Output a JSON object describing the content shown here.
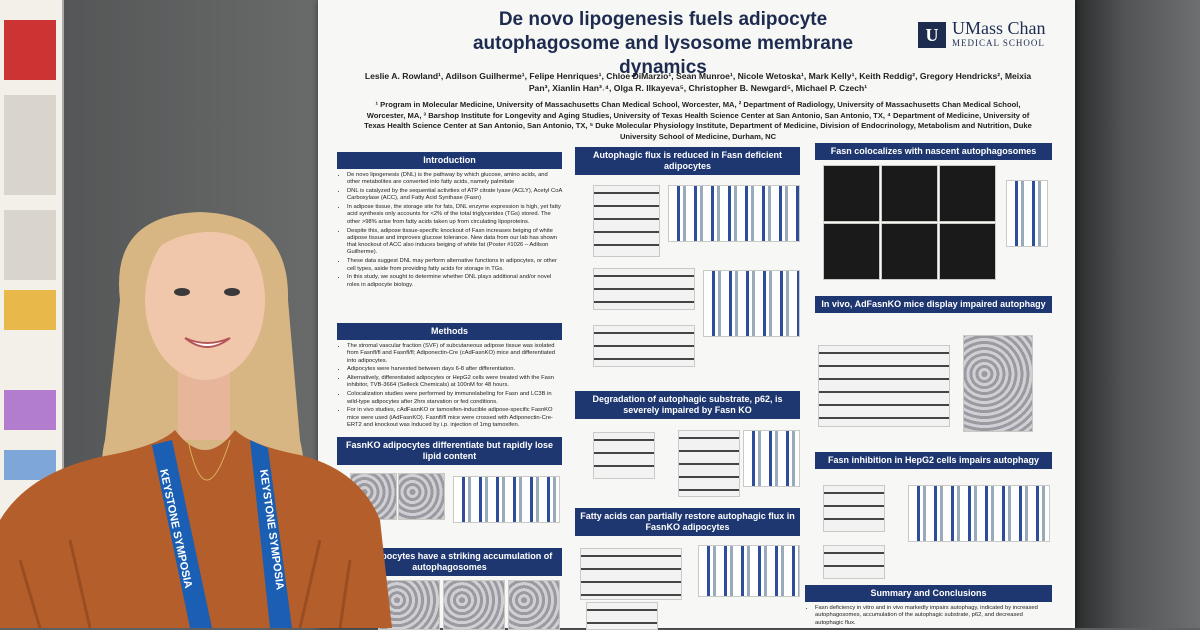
{
  "poster": {
    "title": "De novo lipogenesis fuels adipocyte autophagosome and lysosome membrane dynamics",
    "logo": {
      "mark": "U",
      "name": "UMass Chan",
      "subtitle": "MEDICAL SCHOOL"
    },
    "authors": "Leslie A. Rowland¹, Adilson Guilherme¹, Felipe Henriques¹, Chloe DiMarzio¹, Sean Munroe¹, Nicole Wetoska¹, Mark Kelly¹, Keith Reddig², Gregory Hendricks², Meixia Pan³, Xianlin Han³˒⁴, Olga R. Ilkayeva⁵, Christopher B. Newgard⁵, Michael P. Czech¹",
    "affiliations": "¹ Program in Molecular Medicine, University of Massachusetts Chan Medical School, Worcester, MA, ² Department of Radiology, University of Massachusetts Chan Medical School, Worcester, MA, ³ Barshop Institute for Longevity and Aging Studies, University of Texas Health Science Center at San Antonio, San Antonio, TX, ⁴ Department of Medicine, University of Texas Health Science Center at San Antonio, San Antonio, TX, ⁵ Duke Molecular Physiology Institute, Department of Medicine, Division of Endocrinology, Metabolism and Nutrition, Duke University School of Medicine, Durham, NC",
    "sections": [
      {
        "heading": "Introduction",
        "bullets": [
          "De novo lipogenesis (DNL) is the pathway by which glucose, amino acids, and other metabolites are converted into fatty acids, namely palmitate",
          "DNL is catalyzed by the sequential activities of ATP citrate lyase (ACLY), Acetyl CoA Carboxylase (ACC), and Fatty Acid Synthase (Fasn)",
          "In adipose tissue, the storage site for fats, DNL enzyme expression is high, yet fatty acid synthesis only accounts for <2% of the total triglycerides (TGs) stored. The other >98% arise from fatty acids taken up from circulating lipoproteins.",
          "Despite this, adipose tissue-specific knockout of Fasn increases beiging of white adipose tissue and improves glucose tolerance. New data from our lab has shown that knockout of ACC also induces beiging of white fat (Poster #1026 – Adilson Guilherme).",
          "These data suggest DNL may perform alternative functions in adipocytes, or other cell types, aside from providing fatty acids for storage in TGs.",
          "In this study, we sought to determine whether DNL plays additional and/or novel roles in adipocyte biology."
        ]
      },
      {
        "heading": "Methods",
        "bullets": [
          "The stromal vascular fraction (SVF) of subcutaneous adipose tissue was isolated from Fasnfl/fl and Fasnfl/fl; Adiponectin-Cre (cAdFasnKO) mice and differentiated into adipocytes.",
          "Adipocytes were harvested between days 6-8 after differentiation.",
          "Alternatively, differentiated adipocytes or HepG2 cells were treated with the Fasn inhibitor, TVB-3664 (Selleck Chemicals) at 100nM for 48 hours.",
          "Colocalization studies were performed by immunolabeling for Fasn and LC3B in wild-type adipocytes after 2hrs starvation or fed conditions.",
          "For in vivo studies, cAdFasnKO or tamoxifen-inducible adipose-specific FasnKO mice were used (iAdFasnKO). Fasnfl/fl mice were crossed with Adiponectin-Cre-ERT2 and knockout was induced by i.p. injection of 1mg tamoxifen."
        ]
      },
      {
        "heading": "FasnKO adipocytes differentiate but rapidly lose lipid content"
      },
      {
        "heading": "nKO adipocytes have a striking accumulation of autophagosomes"
      },
      {
        "heading": "Autophagic flux is reduced in Fasn deficient adipocytes"
      },
      {
        "heading": "Degradation of autophagic substrate, p62, is severely impaired by Fasn KO"
      },
      {
        "heading": "Fatty acids can partially restore autophagic flux in FasnKO adipocytes"
      },
      {
        "heading": "Fasn colocalizes with nascent autophagosomes"
      },
      {
        "heading": "In vivo, AdFasnKO mice display impaired autophagy"
      },
      {
        "heading": "Fasn inhibition in HepG2 cells impairs autophagy"
      },
      {
        "heading": "Summary and Conclusions",
        "bullets": [
          "Fasn deficiency in vitro and in vivo markedly impairs autophagy, indicated by increased autophagosomes, accumulation of the autophagic substrate, p62, and decreased autophagic flux."
        ]
      }
    ]
  },
  "lanyard": "KEYSTONE SYMPOSIA"
}
